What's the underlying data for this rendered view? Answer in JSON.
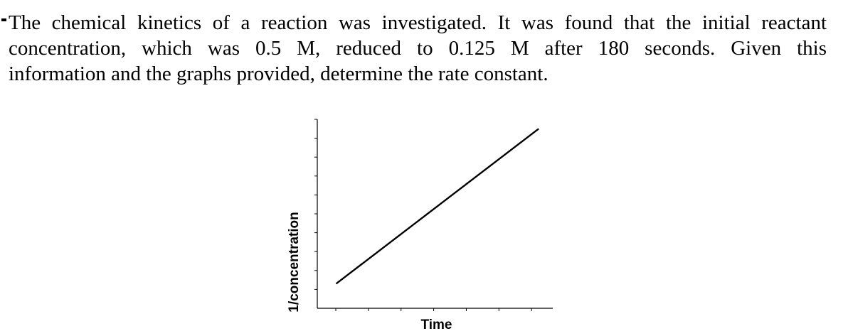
{
  "question": {
    "lines": [
      "The chemical kinetics of a reaction was investigated. It was found that the initial reactant",
      "concentration, which was 0.5 M, reduced to 0.125 M after 180 seconds. Given this",
      "information and the graphs provided, determine the rate constant."
    ]
  },
  "chart_data": {
    "type": "line",
    "xlabel": "Time",
    "ylabel": "1/concentration",
    "x_tick_count": 7,
    "y_tick_count": 10,
    "tick_labels_shown": false,
    "grid": false,
    "legend": "none",
    "xlim": [
      0,
      1
    ],
    "ylim": [
      0,
      1
    ],
    "series": [
      {
        "x": [
          0.08,
          0.94
        ],
        "y": [
          0.13,
          0.95
        ]
      }
    ],
    "line_color": "#000000"
  }
}
